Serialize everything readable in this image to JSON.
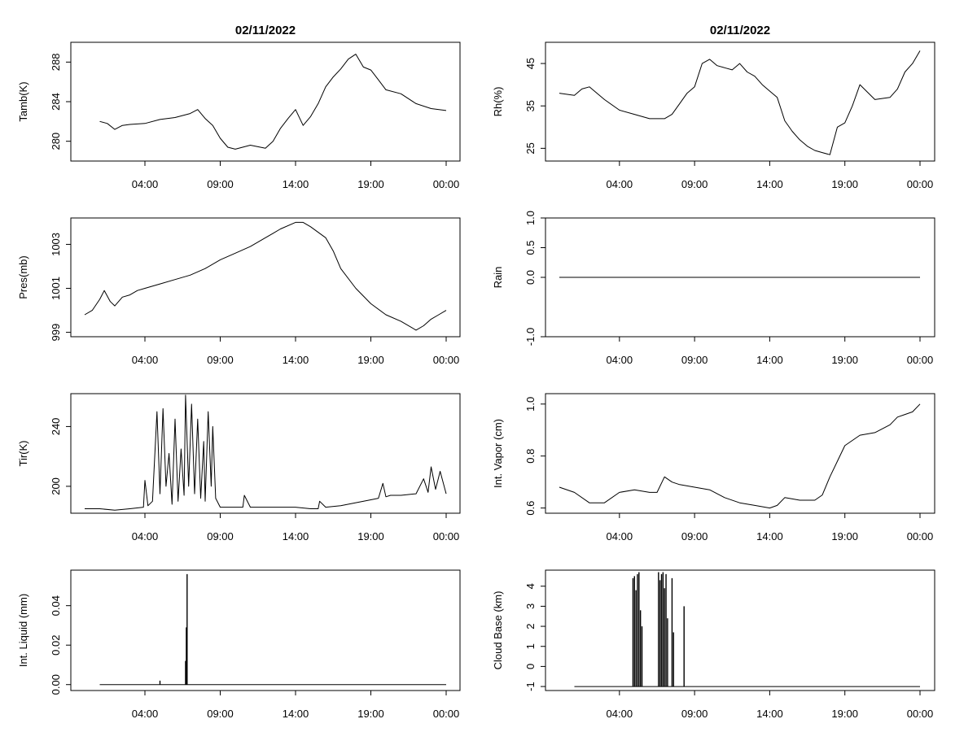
{
  "chart_data": [
    {
      "id": "tamb",
      "type": "line",
      "title": "02/11/2022",
      "xlabel": "",
      "ylabel": "Tamb(K)",
      "xlim": [
        0,
        24
      ],
      "ylim": [
        278,
        290
      ],
      "x_ticks": [
        4,
        9,
        14,
        19,
        24
      ],
      "x_tick_labels": [
        "04:00",
        "09:00",
        "14:00",
        "19:00",
        "00:00"
      ],
      "y_ticks": [
        280,
        284,
        288
      ],
      "y_tick_labels": [
        "280",
        "284",
        "288"
      ],
      "series": [
        {
          "x": [
            1,
            1.5,
            2,
            2.5,
            3,
            4,
            5,
            6,
            7,
            7.5,
            8,
            8.5,
            9,
            9.5,
            10,
            11,
            12,
            12.5,
            13,
            13.5,
            14,
            14.5,
            15,
            15.5,
            16,
            16.5,
            17,
            17.5,
            18,
            18.5,
            19,
            19.5,
            20,
            21,
            22,
            23,
            24
          ],
          "y": [
            282,
            281.8,
            281.2,
            281.6,
            281.7,
            281.8,
            282.2,
            282.4,
            282.8,
            283.2,
            282.3,
            281.6,
            280.3,
            279.4,
            279.2,
            279.6,
            279.3,
            280,
            281.3,
            282.3,
            283.2,
            281.6,
            282.5,
            283.8,
            285.5,
            286.5,
            287.3,
            288.3,
            288.8,
            287.5,
            287.2,
            286.2,
            285.2,
            284.8,
            283.8,
            283.3,
            283.1
          ]
        }
      ]
    },
    {
      "id": "rh",
      "type": "line",
      "title": "02/11/2022",
      "xlabel": "",
      "ylabel": "Rh(%)",
      "xlim": [
        0,
        24
      ],
      "ylim": [
        22,
        50
      ],
      "x_ticks": [
        4,
        9,
        14,
        19,
        24
      ],
      "x_tick_labels": [
        "04:00",
        "09:00",
        "14:00",
        "19:00",
        "00:00"
      ],
      "y_ticks": [
        25,
        35,
        45
      ],
      "y_tick_labels": [
        "25",
        "35",
        "45"
      ],
      "series": [
        {
          "x": [
            0,
            1,
            1.5,
            2,
            3,
            4,
            5,
            6,
            7,
            7.5,
            8,
            8.5,
            9,
            9.5,
            10,
            10.5,
            11,
            11.5,
            12,
            12.5,
            13,
            13.5,
            14,
            14.5,
            15,
            15.5,
            16,
            16.5,
            17,
            17.5,
            18,
            18.5,
            19,
            19.5,
            20,
            21,
            22,
            22.5,
            23,
            23.5,
            24
          ],
          "y": [
            38,
            37.5,
            39,
            39.5,
            36.5,
            34,
            33,
            32,
            32,
            33,
            35.5,
            38,
            39.5,
            45,
            46,
            44.5,
            44,
            43.5,
            45,
            43,
            42,
            40,
            38.5,
            37,
            31.5,
            29,
            27,
            25.5,
            24.5,
            24,
            23.5,
            30,
            31,
            35,
            40,
            36.5,
            37,
            39,
            43,
            45,
            48
          ]
        }
      ]
    },
    {
      "id": "pres",
      "type": "line",
      "title": "",
      "xlabel": "",
      "ylabel": "Pres(mb)",
      "xlim": [
        0,
        24
      ],
      "ylim": [
        998.8,
        1004.2
      ],
      "x_ticks": [
        4,
        9,
        14,
        19,
        24
      ],
      "x_tick_labels": [
        "04:00",
        "09:00",
        "14:00",
        "19:00",
        "00:00"
      ],
      "y_ticks": [
        999,
        1001,
        1003
      ],
      "y_tick_labels": [
        "999",
        "1001",
        "1003"
      ],
      "series": [
        {
          "x": [
            0,
            0.5,
            1,
            1.3,
            1.7,
            2,
            2.5,
            3,
            3.5,
            4,
            5,
            6,
            7,
            8,
            9,
            10,
            11,
            12,
            12.5,
            13,
            14,
            14.5,
            15,
            16,
            16.5,
            17,
            18,
            19,
            20,
            21,
            22,
            22.5,
            23,
            23.5,
            24
          ],
          "y": [
            999.8,
            1000.0,
            1000.5,
            1000.9,
            1000.4,
            1000.2,
            1000.6,
            1000.7,
            1000.9,
            1001.0,
            1001.2,
            1001.4,
            1001.6,
            1001.9,
            1002.3,
            1002.6,
            1002.9,
            1003.3,
            1003.5,
            1003.7,
            1004.0,
            1004.0,
            1003.8,
            1003.3,
            1002.7,
            1001.9,
            1001.0,
            1000.3,
            999.8,
            999.5,
            999.1,
            999.3,
            999.6,
            999.8,
            1000.0
          ]
        }
      ]
    },
    {
      "id": "rain",
      "type": "line",
      "title": "",
      "xlabel": "",
      "ylabel": "Rain",
      "xlim": [
        0,
        24
      ],
      "ylim": [
        -1,
        1
      ],
      "x_ticks": [
        4,
        9,
        14,
        19,
        24
      ],
      "x_tick_labels": [
        "04:00",
        "09:00",
        "14:00",
        "19:00",
        "00:00"
      ],
      "y_ticks": [
        -1,
        0,
        0.5,
        1
      ],
      "y_tick_labels": [
        "-1.0",
        "0.0",
        "0.5",
        "1.0"
      ],
      "series": [
        {
          "x": [
            0,
            24
          ],
          "y": [
            0,
            0
          ]
        }
      ]
    },
    {
      "id": "tir",
      "type": "line",
      "title": "",
      "xlabel": "",
      "ylabel": "Tir(K)",
      "xlim": [
        0,
        24
      ],
      "ylim": [
        182,
        262
      ],
      "x_ticks": [
        4,
        9,
        14,
        19,
        24
      ],
      "x_tick_labels": [
        "04:00",
        "09:00",
        "14:00",
        "19:00",
        "00:00"
      ],
      "y_ticks": [
        200,
        240
      ],
      "y_tick_labels": [
        "200",
        "240"
      ],
      "series": [
        {
          "x": [
            0,
            1,
            2,
            3,
            3.9,
            4.0,
            4.2,
            4.5,
            4.8,
            5.0,
            5.2,
            5.4,
            5.6,
            5.8,
            6.0,
            6.2,
            6.4,
            6.6,
            6.7,
            6.9,
            7.1,
            7.3,
            7.5,
            7.7,
            7.9,
            8.0,
            8.2,
            8.4,
            8.5,
            8.7,
            9,
            10,
            10.5,
            10.6,
            11,
            12,
            13,
            14,
            15,
            15.5,
            15.6,
            16,
            17,
            18,
            19,
            19.5,
            19.8,
            20,
            20.3,
            21,
            22,
            22.5,
            22.8,
            23,
            23.3,
            23.6,
            24
          ],
          "y": [
            185,
            185,
            184,
            185,
            186,
            204,
            187,
            190,
            250,
            195,
            252,
            200,
            222,
            188,
            245,
            190,
            225,
            194,
            261,
            200,
            255,
            195,
            245,
            192,
            230,
            190,
            250,
            200,
            240,
            192,
            186,
            186,
            186,
            194,
            186,
            186,
            186,
            186,
            185,
            185,
            190,
            186,
            187,
            189,
            191,
            192,
            202,
            193,
            194,
            194,
            195,
            205,
            196,
            213,
            198,
            210,
            195
          ]
        }
      ]
    },
    {
      "id": "int_vapor",
      "type": "line",
      "title": "",
      "xlabel": "",
      "ylabel": "Int. Vapor (cm)",
      "xlim": [
        0,
        24
      ],
      "ylim": [
        0.58,
        1.04
      ],
      "x_ticks": [
        4,
        9,
        14,
        19,
        24
      ],
      "x_tick_labels": [
        "04:00",
        "09:00",
        "14:00",
        "19:00",
        "00:00"
      ],
      "y_ticks": [
        0.6,
        0.8,
        1.0
      ],
      "y_tick_labels": [
        "0.6",
        "0.8",
        "1.0"
      ],
      "series": [
        {
          "x": [
            0,
            1,
            2,
            3,
            4,
            5,
            6,
            6.5,
            7,
            7.5,
            8,
            9,
            10,
            11,
            12,
            13,
            14,
            14.5,
            15,
            16,
            17,
            17.5,
            18,
            18.5,
            19,
            20,
            21,
            22,
            22.5,
            23,
            23.5,
            24
          ],
          "y": [
            0.68,
            0.66,
            0.62,
            0.62,
            0.66,
            0.67,
            0.66,
            0.66,
            0.72,
            0.7,
            0.69,
            0.68,
            0.67,
            0.64,
            0.62,
            0.61,
            0.6,
            0.61,
            0.64,
            0.63,
            0.63,
            0.65,
            0.72,
            0.78,
            0.84,
            0.88,
            0.89,
            0.92,
            0.95,
            0.96,
            0.97,
            1.0
          ]
        }
      ]
    },
    {
      "id": "int_liquid",
      "type": "bar",
      "title": "",
      "xlabel": "",
      "ylabel": "Int. Liquid (mm)",
      "xlim": [
        0,
        24
      ],
      "ylim": [
        -0.003,
        0.058
      ],
      "x_ticks": [
        4,
        9,
        14,
        19,
        24
      ],
      "x_tick_labels": [
        "04:00",
        "09:00",
        "14:00",
        "19:00",
        "00:00"
      ],
      "y_ticks": [
        0,
        0.02,
        0.04
      ],
      "y_tick_labels": [
        "0.00",
        "0.02",
        "0.04"
      ],
      "baseline": 0,
      "series": [
        {
          "x": [
            5.0,
            6.7,
            6.75,
            6.8
          ],
          "y": [
            0.002,
            0.012,
            0.029,
            0.056
          ]
        }
      ]
    },
    {
      "id": "cloud_base",
      "type": "bar",
      "title": "",
      "xlabel": "",
      "ylabel": "Cloud Base (km)",
      "xlim": [
        0,
        24
      ],
      "ylim": [
        -1.2,
        4.8
      ],
      "x_ticks": [
        4,
        9,
        14,
        19,
        24
      ],
      "x_tick_labels": [
        "04:00",
        "09:00",
        "14:00",
        "19:00",
        "00:00"
      ],
      "y_ticks": [
        -1,
        0,
        1,
        2,
        3,
        4
      ],
      "y_tick_labels": [
        "-1",
        "0",
        "1",
        "2",
        "3",
        "4"
      ],
      "baseline": -1,
      "series": [
        {
          "x": [
            4.9,
            5.0,
            5.1,
            5.2,
            5.3,
            5.4,
            5.5,
            6.6,
            6.7,
            6.8,
            6.9,
            7.0,
            7.1,
            7.2,
            7.5,
            7.6,
            8.3
          ],
          "y": [
            4.4,
            4.5,
            3.8,
            4.6,
            4.7,
            2.8,
            2.0,
            4.7,
            4.3,
            4.6,
            4.7,
            3.9,
            4.6,
            2.4,
            4.4,
            1.7,
            3.0
          ]
        }
      ]
    }
  ]
}
